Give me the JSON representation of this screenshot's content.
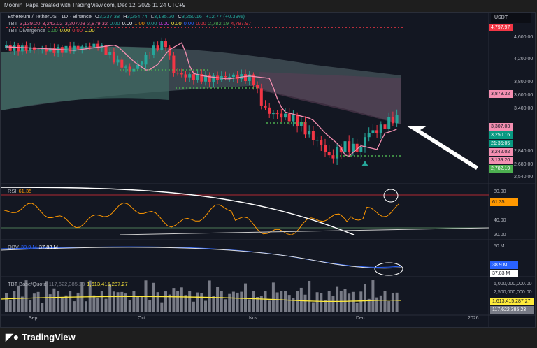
{
  "credit": "Moonin_Papa created with TradingView.com, Dec 12, 2025 11:24 UTC+9",
  "symbol": {
    "name": "Ethereum / TetherUS · 1D · Binance",
    "o_label": "O",
    "o": "3,237.38",
    "h_label": "H",
    "h": "3,254.74",
    "l_label": "L",
    "l": "3,185.20",
    "c_label": "C",
    "c": "3,250.16",
    "change": "+12.77 (+0.39%)"
  },
  "tbt": {
    "label": "TBT",
    "values": [
      {
        "v": "3,139.20",
        "c": "#f06292"
      },
      {
        "v": "3,242.02",
        "c": "#f06292"
      },
      {
        "v": "3,307.03",
        "c": "#f06292"
      },
      {
        "v": "3,879.32",
        "c": "#f06292"
      },
      {
        "v": "0.00",
        "c": "#26a69a"
      },
      {
        "v": "0.00",
        "c": "#ffffff"
      },
      {
        "v": "1.00",
        "c": "#ff9800"
      },
      {
        "v": "0.00",
        "c": "#26a69a"
      },
      {
        "v": "0.00",
        "c": "#e040fb"
      },
      {
        "v": "0.00",
        "c": "#ffeb3b"
      },
      {
        "v": "0.00",
        "c": "#2962ff"
      },
      {
        "v": "0.00",
        "c": "#f23645"
      },
      {
        "v": "2,782.19",
        "c": "#4caf50"
      },
      {
        "v": "4,797.97",
        "c": "#f23645"
      }
    ]
  },
  "divergence": {
    "label": "TBT Divergence",
    "values": [
      {
        "v": "0.00",
        "c": "#4caf50"
      },
      {
        "v": "0.00",
        "c": "#ffeb3b"
      },
      {
        "v": "0.00",
        "c": "#f23645"
      },
      {
        "v": "0.00",
        "c": "#ffeb3b"
      }
    ]
  },
  "currency": "USDT",
  "price_axis": [
    "4,600.00",
    "4,200.00",
    "3,800.00",
    "3,600.00",
    "3,400.00",
    "2,840.00",
    "2,680.00",
    "2,540.00"
  ],
  "price_tags": [
    {
      "v": "4,797.97",
      "bg": "#f23645"
    },
    {
      "v": "3,879.32",
      "bg": "#f48fb1"
    },
    {
      "v": "3,307.03",
      "bg": "#f48fb1"
    },
    {
      "v": "3,250.16",
      "bg": "#089981"
    },
    {
      "v": "21:35:05",
      "bg": "#089981"
    },
    {
      "v": "3,242.02",
      "bg": "#f48fb1"
    },
    {
      "v": "3,139.20",
      "bg": "#f48fb1"
    },
    {
      "v": "2,782.19",
      "bg": "#4caf50"
    }
  ],
  "rsi": {
    "label": "RSI",
    "value": "61.35",
    "axis": [
      "80.00",
      "40.00",
      "20.00"
    ]
  },
  "obv": {
    "label": "OBV",
    "value": "38.9 M",
    "ma": "37.83 M",
    "axis": "50 M"
  },
  "vol": {
    "label": "TBT Base/Quote",
    "base": "117,622,385.23",
    "quote": "1,613,415,287.27",
    "axis": [
      "5,000,000,000.00",
      "2,500,000,000.00"
    ]
  },
  "time_axis": [
    "Sep",
    "Oct",
    "Nov",
    "Dec",
    "2026"
  ],
  "footer": "TradingView"
}
